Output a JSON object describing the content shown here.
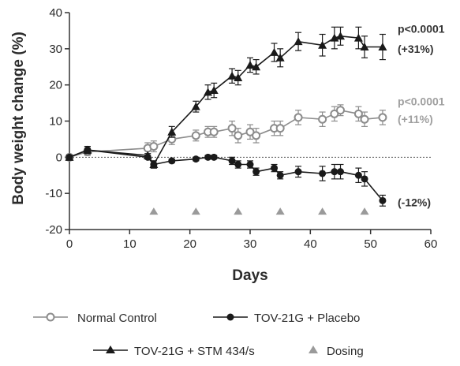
{
  "chart_data": {
    "type": "line",
    "title": "",
    "xlabel": "Days",
    "ylabel": "Body weight change (%)",
    "xlim": [
      0,
      60
    ],
    "ylim": [
      -20,
      40
    ],
    "x_ticks": [
      0,
      10,
      20,
      30,
      40,
      50,
      60
    ],
    "y_ticks": [
      -20,
      -10,
      0,
      10,
      20,
      30,
      40
    ],
    "grid": false,
    "baseline": {
      "y": 0,
      "style": "dotted"
    },
    "legend_position": "bottom",
    "series": [
      {
        "name": "Normal Control",
        "marker": "open-circle",
        "color": "#8c8c8c",
        "points": [
          {
            "x": 0,
            "y": 0,
            "err": 0.8
          },
          {
            "x": 3,
            "y": 1.5,
            "err": 1.0
          },
          {
            "x": 13,
            "y": 2.5,
            "err": 1.5
          },
          {
            "x": 14,
            "y": 3.0,
            "err": 1.5
          },
          {
            "x": 17,
            "y": 5.0,
            "err": 1.5
          },
          {
            "x": 21,
            "y": 6.0,
            "err": 1.5
          },
          {
            "x": 23,
            "y": 7.0,
            "err": 1.5
          },
          {
            "x": 24,
            "y": 7.0,
            "err": 1.5
          },
          {
            "x": 27,
            "y": 8.0,
            "err": 2.0
          },
          {
            "x": 28,
            "y": 6.0,
            "err": 2.0
          },
          {
            "x": 30,
            "y": 7.0,
            "err": 2.0
          },
          {
            "x": 31,
            "y": 6.0,
            "err": 2.0
          },
          {
            "x": 34,
            "y": 8.0,
            "err": 2.0
          },
          {
            "x": 35,
            "y": 8.0,
            "err": 2.0
          },
          {
            "x": 38,
            "y": 11.0,
            "err": 2.0
          },
          {
            "x": 42,
            "y": 10.5,
            "err": 2.0
          },
          {
            "x": 44,
            "y": 12.0,
            "err": 2.0
          },
          {
            "x": 45,
            "y": 13.0,
            "err": 1.5
          },
          {
            "x": 48,
            "y": 12.0,
            "err": 2.0
          },
          {
            "x": 49,
            "y": 10.5,
            "err": 2.0
          },
          {
            "x": 52,
            "y": 11.0,
            "err": 2.0
          }
        ]
      },
      {
        "name": "TOV-21G + Placebo",
        "marker": "filled-circle",
        "color": "#1a1a1a",
        "points": [
          {
            "x": 0,
            "y": 0,
            "err": 0.5
          },
          {
            "x": 3,
            "y": 2.0,
            "err": 1.0
          },
          {
            "x": 13,
            "y": 0.0,
            "err": 0.5
          },
          {
            "x": 14,
            "y": -2.0,
            "err": 1.0
          },
          {
            "x": 17,
            "y": -1.0,
            "err": 0.5
          },
          {
            "x": 21,
            "y": -0.5,
            "err": 0.5
          },
          {
            "x": 23,
            "y": 0.0,
            "err": 0.5
          },
          {
            "x": 24,
            "y": 0.0,
            "err": 0.5
          },
          {
            "x": 27,
            "y": -1.0,
            "err": 1.0
          },
          {
            "x": 28,
            "y": -2.0,
            "err": 1.0
          },
          {
            "x": 30,
            "y": -2.0,
            "err": 1.0
          },
          {
            "x": 31,
            "y": -4.0,
            "err": 1.0
          },
          {
            "x": 34,
            "y": -3.0,
            "err": 1.0
          },
          {
            "x": 35,
            "y": -5.0,
            "err": 1.0
          },
          {
            "x": 38,
            "y": -4.0,
            "err": 1.5
          },
          {
            "x": 42,
            "y": -4.5,
            "err": 2.0
          },
          {
            "x": 44,
            "y": -4.0,
            "err": 2.0
          },
          {
            "x": 45,
            "y": -4.0,
            "err": 2.0
          },
          {
            "x": 48,
            "y": -5.0,
            "err": 2.0
          },
          {
            "x": 49,
            "y": -6.0,
            "err": 2.0
          },
          {
            "x": 52,
            "y": -12.0,
            "err": 1.5
          }
        ]
      },
      {
        "name": "TOV-21G + STM 434/s",
        "marker": "filled-triangle",
        "color": "#1a1a1a",
        "points": [
          {
            "x": 0,
            "y": 0,
            "err": 0.5
          },
          {
            "x": 3,
            "y": 2.0,
            "err": 1.0
          },
          {
            "x": 13,
            "y": 0.5,
            "err": 0.5
          },
          {
            "x": 14,
            "y": -2.0,
            "err": 1.0
          },
          {
            "x": 17,
            "y": 7.0,
            "err": 1.5
          },
          {
            "x": 21,
            "y": 14.0,
            "err": 1.5
          },
          {
            "x": 23,
            "y": 18.0,
            "err": 2.0
          },
          {
            "x": 24,
            "y": 18.5,
            "err": 2.0
          },
          {
            "x": 27,
            "y": 22.5,
            "err": 2.0
          },
          {
            "x": 28,
            "y": 22.0,
            "err": 2.0
          },
          {
            "x": 30,
            "y": 25.5,
            "err": 2.0
          },
          {
            "x": 31,
            "y": 25.0,
            "err": 2.0
          },
          {
            "x": 34,
            "y": 29.0,
            "err": 2.5
          },
          {
            "x": 35,
            "y": 27.5,
            "err": 2.5
          },
          {
            "x": 38,
            "y": 32.0,
            "err": 2.5
          },
          {
            "x": 42,
            "y": 31.0,
            "err": 3.0
          },
          {
            "x": 44,
            "y": 33.0,
            "err": 3.0
          },
          {
            "x": 45,
            "y": 33.5,
            "err": 2.5
          },
          {
            "x": 48,
            "y": 33.0,
            "err": 3.0
          },
          {
            "x": 49,
            "y": 30.5,
            "err": 3.0
          },
          {
            "x": 52,
            "y": 30.5,
            "err": 3.5
          }
        ]
      }
    ],
    "dosing": {
      "name": "Dosing",
      "marker": "gray-triangle",
      "color": "#9a9a9a",
      "y": -15,
      "days": [
        14,
        21,
        28,
        35,
        42,
        49
      ]
    },
    "annotations": [
      {
        "text": "p<0.0001",
        "x": 54.5,
        "y": 35.5,
        "color": "#333333"
      },
      {
        "text": "(+31%)",
        "x": 54.5,
        "y": 30,
        "color": "#333333"
      },
      {
        "text": "p<0.0001",
        "x": 54.5,
        "y": 15.5,
        "color": "#a0a0a0"
      },
      {
        "text": "(+11%)",
        "x": 54.5,
        "y": 10.5,
        "color": "#a0a0a0"
      },
      {
        "text": "(-12%)",
        "x": 54.5,
        "y": -12.5,
        "color": "#333333"
      }
    ]
  }
}
